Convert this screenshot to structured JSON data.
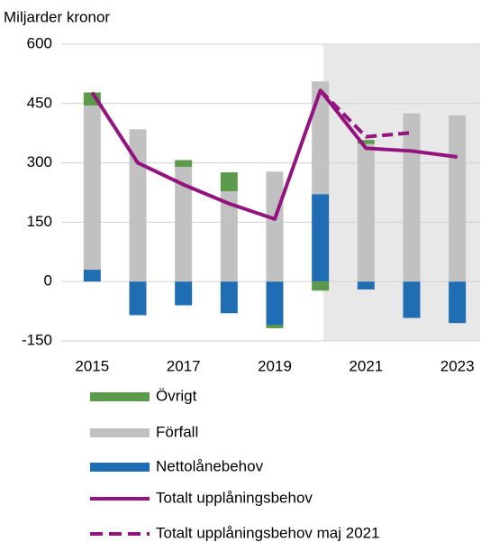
{
  "chart_data": {
    "type": "bar",
    "ylabel": "Miljarder kronor",
    "categories": [
      "2015",
      null,
      "2017",
      null,
      "2019",
      null,
      "2021",
      null,
      "2023"
    ],
    "series": [
      {
        "name": "Övrigt",
        "color": "#5b9a4b",
        "values": [
          33,
          0,
          17,
          48,
          -8,
          -23,
          10,
          0,
          0
        ]
      },
      {
        "name": "Förfall",
        "color": "#c1c1c1",
        "values": [
          415,
          385,
          290,
          228,
          278,
          285,
          348,
          425,
          420
        ]
      },
      {
        "name": "Nettolånebehov",
        "color": "#1f6db3",
        "values": [
          30,
          -85,
          -60,
          -80,
          -110,
          221,
          -20,
          -92,
          -105
        ]
      },
      {
        "name": "Totalt upplåningsbehov",
        "type": "line",
        "color": "#93137f",
        "values": [
          478,
          300,
          245,
          197,
          158,
          483,
          337,
          330,
          315
        ]
      },
      {
        "name": "Totalt upplåningsbehov maj 2021",
        "type": "line",
        "dashed": true,
        "color": "#93137f",
        "values": [
          null,
          null,
          null,
          null,
          null,
          483,
          366,
          376,
          null
        ]
      }
    ],
    "ylim": [
      -150,
      600
    ],
    "yticks": [
      -150,
      0,
      150,
      300,
      450,
      600
    ],
    "grid": true
  }
}
